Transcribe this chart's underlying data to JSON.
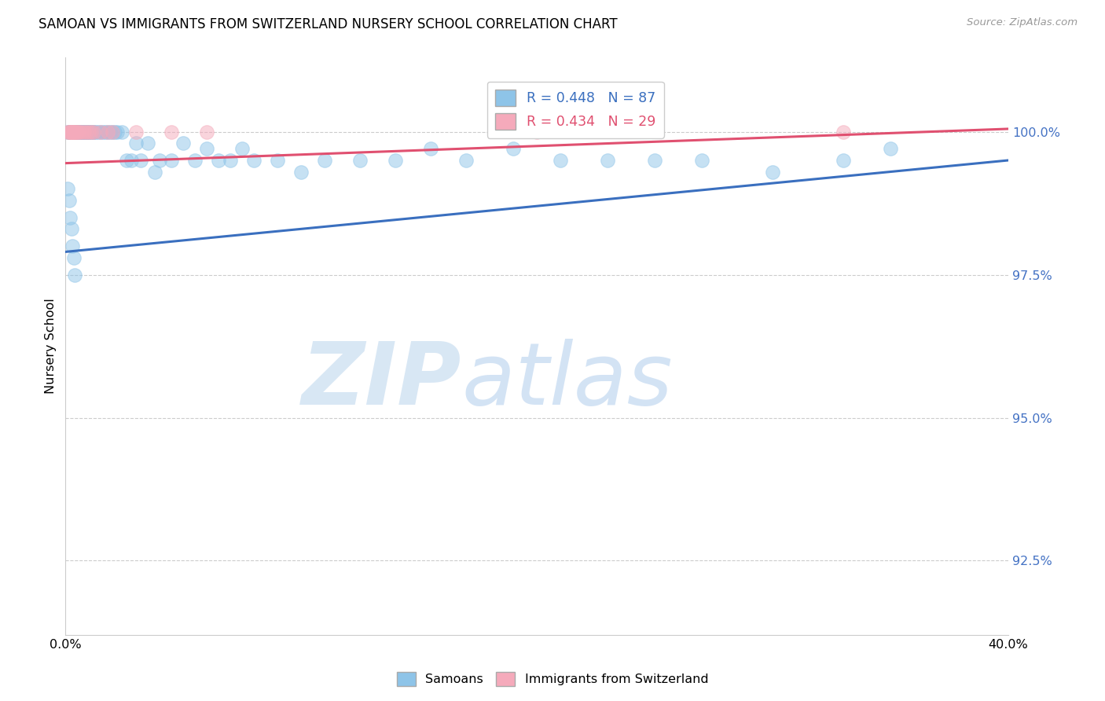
{
  "title": "SAMOAN VS IMMIGRANTS FROM SWITZERLAND NURSERY SCHOOL CORRELATION CHART",
  "source": "Source: ZipAtlas.com",
  "ylabel": "Nursery School",
  "ytick_labels": [
    "92.5%",
    "95.0%",
    "97.5%",
    "100.0%"
  ],
  "ytick_values": [
    92.5,
    95.0,
    97.5,
    100.0
  ],
  "xlim": [
    0.0,
    40.0
  ],
  "ylim": [
    91.2,
    101.3
  ],
  "legend_blue_r": "R = 0.448",
  "legend_blue_n": "N = 87",
  "legend_pink_r": "R = 0.434",
  "legend_pink_n": "N = 29",
  "blue_color": "#8EC4E8",
  "pink_color": "#F5AABB",
  "blue_line_color": "#3A6FBF",
  "pink_line_color": "#E05070",
  "background_color": "#FFFFFF",
  "blue_scatter_x": [
    0.1,
    0.15,
    0.2,
    0.2,
    0.25,
    0.25,
    0.3,
    0.3,
    0.3,
    0.35,
    0.35,
    0.4,
    0.4,
    0.4,
    0.45,
    0.45,
    0.5,
    0.5,
    0.5,
    0.55,
    0.55,
    0.6,
    0.6,
    0.65,
    0.7,
    0.7,
    0.75,
    0.8,
    0.8,
    0.85,
    0.9,
    0.9,
    0.95,
    1.0,
    1.0,
    1.1,
    1.1,
    1.2,
    1.2,
    1.3,
    1.4,
    1.5,
    1.6,
    1.7,
    1.8,
    1.9,
    2.0,
    2.1,
    2.2,
    2.4,
    2.6,
    2.8,
    3.0,
    3.2,
    3.5,
    3.8,
    4.0,
    4.5,
    5.0,
    5.5,
    6.0,
    6.5,
    7.0,
    7.5,
    8.0,
    9.0,
    10.0,
    11.0,
    12.5,
    14.0,
    15.5,
    17.0,
    19.0,
    21.0,
    23.0,
    25.0,
    27.0,
    30.0,
    33.0,
    35.0,
    0.1,
    0.15,
    0.2,
    0.25,
    0.3,
    0.35,
    0.4
  ],
  "blue_scatter_y": [
    100.0,
    100.0,
    100.0,
    100.0,
    100.0,
    100.0,
    100.0,
    100.0,
    100.0,
    100.0,
    100.0,
    100.0,
    100.0,
    100.0,
    100.0,
    100.0,
    100.0,
    100.0,
    100.0,
    100.0,
    100.0,
    100.0,
    100.0,
    100.0,
    100.0,
    100.0,
    100.0,
    100.0,
    100.0,
    100.0,
    100.0,
    100.0,
    100.0,
    100.0,
    100.0,
    100.0,
    100.0,
    100.0,
    100.0,
    100.0,
    100.0,
    100.0,
    100.0,
    100.0,
    100.0,
    100.0,
    100.0,
    100.0,
    100.0,
    100.0,
    99.5,
    99.5,
    99.8,
    99.5,
    99.8,
    99.3,
    99.5,
    99.5,
    99.8,
    99.5,
    99.7,
    99.5,
    99.5,
    99.7,
    99.5,
    99.5,
    99.3,
    99.5,
    99.5,
    99.5,
    99.7,
    99.5,
    99.7,
    99.5,
    99.5,
    99.5,
    99.5,
    99.3,
    99.5,
    99.7,
    99.0,
    98.8,
    98.5,
    98.3,
    98.0,
    97.8,
    97.5
  ],
  "pink_scatter_x": [
    0.1,
    0.15,
    0.2,
    0.2,
    0.25,
    0.25,
    0.3,
    0.3,
    0.35,
    0.4,
    0.4,
    0.45,
    0.5,
    0.55,
    0.6,
    0.7,
    0.8,
    0.9,
    1.0,
    1.1,
    1.2,
    1.5,
    1.8,
    2.0,
    3.0,
    4.5,
    6.0,
    20.0,
    33.0
  ],
  "pink_scatter_y": [
    100.0,
    100.0,
    100.0,
    100.0,
    100.0,
    100.0,
    100.0,
    100.0,
    100.0,
    100.0,
    100.0,
    100.0,
    100.0,
    100.0,
    100.0,
    100.0,
    100.0,
    100.0,
    100.0,
    100.0,
    100.0,
    100.0,
    100.0,
    100.0,
    100.0,
    100.0,
    100.0,
    100.0,
    100.0
  ],
  "blue_trendline_x": [
    0.0,
    40.0
  ],
  "blue_trendline_y": [
    97.9,
    99.5
  ],
  "pink_trendline_x": [
    0.0,
    40.0
  ],
  "pink_trendline_y": [
    99.45,
    100.05
  ],
  "watermark_color_zip": "#C8DDF0",
  "watermark_color_atlas": "#B0CCEC"
}
